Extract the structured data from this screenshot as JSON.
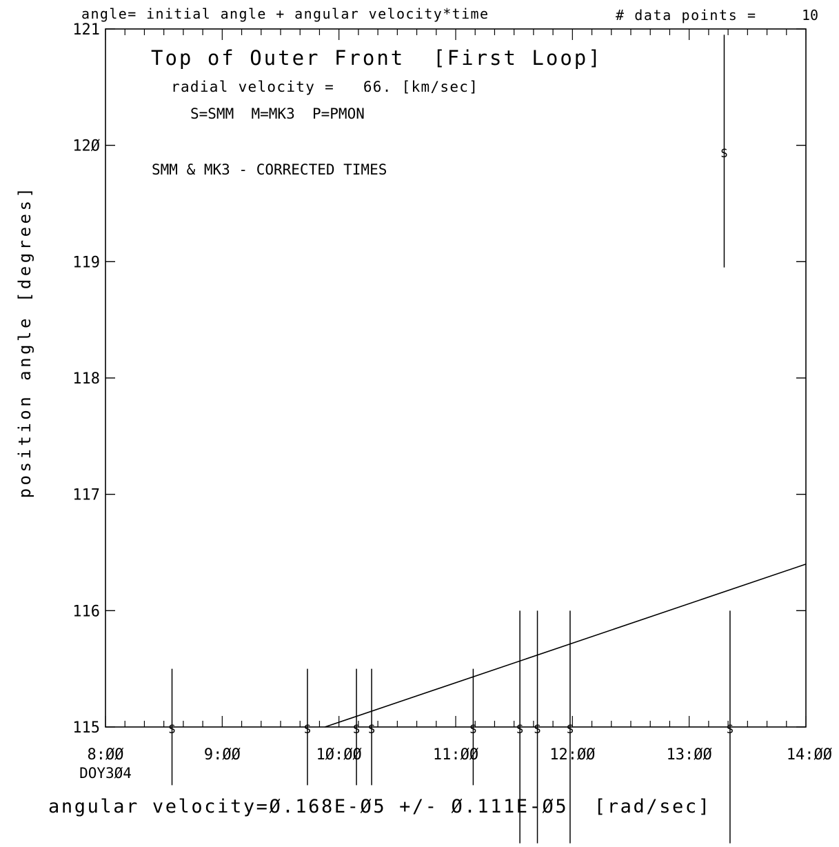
{
  "header": {
    "formula": "angle= initial angle + angular velocity*time",
    "data_points_label": "# data points =",
    "data_points_value": "10"
  },
  "annotations": {
    "title": "Top of Outer Front  [First Loop]",
    "radial_velocity": "radial velocity =   66. [km/sec]",
    "legend": "S=SMM  M=MK3  P=PMON",
    "note": "SMM & MK3 - CORRECTED TIMES"
  },
  "footer": {
    "result": "angular velocity=Ø.168E-Ø5 +/- Ø.111E-Ø5  [rad/sec]"
  },
  "chart_data": {
    "type": "scatter",
    "ylabel": "position angle [degrees]",
    "x_unit": "hours (DOY304)",
    "xlim": [
      8,
      14
    ],
    "ylim": [
      115,
      121
    ],
    "x_tick_values": [
      8,
      9,
      10,
      11,
      12,
      13,
      14
    ],
    "x_tick_labels": [
      "8:ØØ",
      "9:ØØ",
      "1Ø:ØØ",
      "11:ØØ",
      "12:ØØ",
      "13:ØØ",
      "14:ØØ"
    ],
    "x_sub_label": "DOY3Ø4",
    "y_tick_values": [
      115,
      116,
      117,
      118,
      119,
      120,
      121
    ],
    "y_tick_labels": [
      "115",
      "116",
      "117",
      "118",
      "119",
      "12Ø",
      "121"
    ],
    "series": [
      {
        "marker": "S",
        "points": [
          {
            "x": 8.57,
            "y": 115.0,
            "err": 0.5
          },
          {
            "x": 9.73,
            "y": 115.0,
            "err": 0.5
          },
          {
            "x": 10.15,
            "y": 115.0,
            "err": 0.5
          },
          {
            "x": 10.28,
            "y": 115.0,
            "err": 0.5
          },
          {
            "x": 11.15,
            "y": 115.0,
            "err": 0.5
          },
          {
            "x": 11.55,
            "y": 115.0,
            "err": 1.0
          },
          {
            "x": 11.7,
            "y": 115.0,
            "err": 1.0
          },
          {
            "x": 11.98,
            "y": 115.0,
            "err": 1.0
          },
          {
            "x": 13.35,
            "y": 115.0,
            "err": 1.0
          },
          {
            "x": 13.3,
            "y": 119.95,
            "err": 1.0
          }
        ]
      }
    ],
    "fit_line": {
      "x": [
        9.88,
        14.0
      ],
      "y": [
        115.0,
        116.4
      ]
    }
  }
}
